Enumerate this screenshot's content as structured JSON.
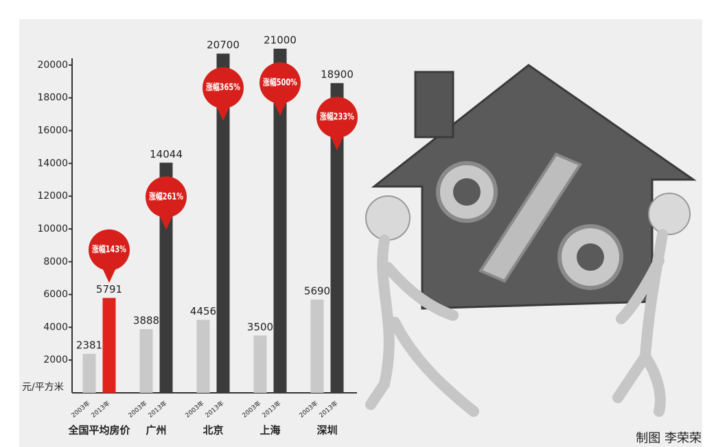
{
  "chart_data": {
    "type": "bar",
    "categories": [
      "全国平均房价",
      "广州",
      "北京",
      "上海",
      "深圳"
    ],
    "series": [
      {
        "name": "2003年",
        "color": "#c9c9c9",
        "values": [
          2381,
          3888,
          4456,
          3500,
          5690
        ]
      },
      {
        "name": "2013年",
        "color": "#3b3b3b",
        "colors": [
          "#e0231c",
          "#3b3b3b",
          "#3b3b3b",
          "#3b3b3b",
          "#3b3b3b"
        ],
        "values": [
          5791,
          14044,
          20700,
          21000,
          18900
        ]
      }
    ],
    "callouts": [
      "涨幅143%",
      "涨幅261%",
      "涨幅365%",
      "涨幅500%",
      "涨幅233%"
    ],
    "callout_color": "#d7201b",
    "y_label": "元/平方米",
    "ylim": [
      0,
      21000
    ],
    "yticks": [
      2000,
      4000,
      6000,
      8000,
      10000,
      12000,
      14000,
      16000,
      18000,
      20000
    ],
    "credit": "制图 李荣荣"
  }
}
